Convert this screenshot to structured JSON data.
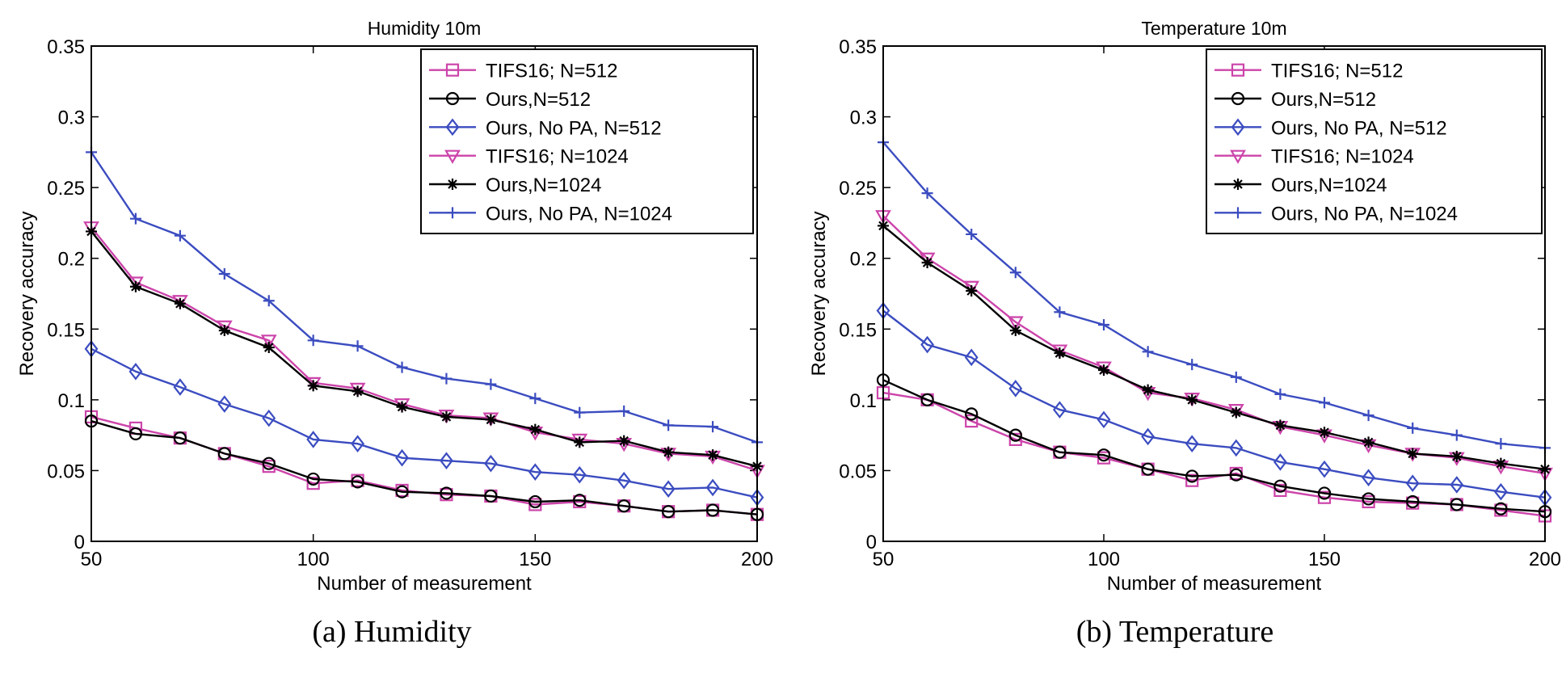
{
  "chart_data": [
    {
      "type": "line",
      "title": "Humidity 10m",
      "xlabel": "Number of measurement",
      "ylabel": "Recovery accuracy",
      "xlim": [
        50,
        200
      ],
      "ylim": [
        0,
        0.35
      ],
      "xticks": [
        "50",
        "100",
        "150",
        "200"
      ],
      "yticks": [
        "0",
        "0.05",
        "0.1",
        "0.15",
        "0.2",
        "0.25",
        "0.3",
        "0.35"
      ],
      "x": [
        50,
        60,
        70,
        80,
        90,
        100,
        110,
        120,
        130,
        140,
        150,
        160,
        170,
        180,
        190,
        200
      ],
      "legend_position": "top-right",
      "caption": "(a) Humidity",
      "series": [
        {
          "name": "TIFS16; N=512",
          "color": "#cc44aa",
          "marker": "square",
          "values": [
            0.088,
            0.08,
            0.073,
            0.062,
            0.053,
            0.041,
            0.043,
            0.036,
            0.033,
            0.032,
            0.026,
            0.028,
            0.025,
            0.021,
            0.022,
            0.019
          ]
        },
        {
          "name": "Ours,N=512",
          "color": "#000000",
          "marker": "circle",
          "values": [
            0.085,
            0.076,
            0.073,
            0.062,
            0.055,
            0.044,
            0.042,
            0.035,
            0.034,
            0.032,
            0.028,
            0.029,
            0.025,
            0.021,
            0.022,
            0.019
          ]
        },
        {
          "name": "Ours, No PA, N=512",
          "color": "#3b4cc0",
          "marker": "diamond",
          "values": [
            0.136,
            0.12,
            0.109,
            0.097,
            0.087,
            0.072,
            0.069,
            0.059,
            0.057,
            0.055,
            0.049,
            0.047,
            0.043,
            0.037,
            0.038,
            0.031
          ]
        },
        {
          "name": "TIFS16; N=1024",
          "color": "#cc44aa",
          "marker": "triangle-down",
          "values": [
            0.222,
            0.183,
            0.17,
            0.152,
            0.142,
            0.112,
            0.108,
            0.097,
            0.089,
            0.087,
            0.077,
            0.072,
            0.069,
            0.062,
            0.06,
            0.05
          ]
        },
        {
          "name": "Ours,N=1024",
          "color": "#000000",
          "marker": "asterisk",
          "values": [
            0.219,
            0.18,
            0.168,
            0.149,
            0.137,
            0.11,
            0.106,
            0.095,
            0.088,
            0.086,
            0.079,
            0.07,
            0.071,
            0.063,
            0.061,
            0.053
          ]
        },
        {
          "name": "Ours, No PA, N=1024",
          "color": "#3b4cc0",
          "marker": "plus",
          "values": [
            0.275,
            0.228,
            0.216,
            0.189,
            0.17,
            0.142,
            0.138,
            0.123,
            0.115,
            0.111,
            0.101,
            0.091,
            0.092,
            0.082,
            0.081,
            0.07
          ]
        }
      ]
    },
    {
      "type": "line",
      "title": "Temperature 10m",
      "xlabel": "Number of measurement",
      "ylabel": "Recovery accuracy",
      "xlim": [
        50,
        200
      ],
      "ylim": [
        0,
        0.35
      ],
      "xticks": [
        "50",
        "100",
        "150",
        "200"
      ],
      "yticks": [
        "0",
        "0.05",
        "0.1",
        "0.15",
        "0.2",
        "0.25",
        "0.3",
        "0.35"
      ],
      "x": [
        50,
        60,
        70,
        80,
        90,
        100,
        110,
        120,
        130,
        140,
        150,
        160,
        170,
        180,
        190,
        200
      ],
      "legend_position": "top-right",
      "caption": "(b) Temperature",
      "series": [
        {
          "name": "TIFS16; N=512",
          "color": "#cc44aa",
          "marker": "square",
          "values": [
            0.105,
            0.1,
            0.085,
            0.072,
            0.063,
            0.059,
            0.051,
            0.043,
            0.048,
            0.036,
            0.031,
            0.028,
            0.027,
            0.026,
            0.022,
            0.018
          ]
        },
        {
          "name": "Ours,N=512",
          "color": "#000000",
          "marker": "circle",
          "values": [
            0.114,
            0.1,
            0.09,
            0.075,
            0.063,
            0.061,
            0.051,
            0.046,
            0.047,
            0.039,
            0.034,
            0.03,
            0.028,
            0.026,
            0.023,
            0.021
          ]
        },
        {
          "name": "Ours, No PA, N=512",
          "color": "#3b4cc0",
          "marker": "diamond",
          "values": [
            0.163,
            0.139,
            0.13,
            0.108,
            0.093,
            0.086,
            0.074,
            0.069,
            0.066,
            0.056,
            0.051,
            0.045,
            0.041,
            0.04,
            0.035,
            0.031
          ]
        },
        {
          "name": "TIFS16; N=1024",
          "color": "#cc44aa",
          "marker": "triangle-down",
          "values": [
            0.23,
            0.2,
            0.18,
            0.155,
            0.135,
            0.123,
            0.105,
            0.101,
            0.093,
            0.081,
            0.075,
            0.068,
            0.062,
            0.059,
            0.053,
            0.048
          ]
        },
        {
          "name": "Ours,N=1024",
          "color": "#000000",
          "marker": "asterisk",
          "values": [
            0.223,
            0.197,
            0.177,
            0.149,
            0.133,
            0.121,
            0.107,
            0.1,
            0.091,
            0.082,
            0.077,
            0.07,
            0.062,
            0.06,
            0.055,
            0.051
          ]
        },
        {
          "name": "Ours, No PA, N=1024",
          "color": "#3b4cc0",
          "marker": "plus",
          "values": [
            0.282,
            0.246,
            0.217,
            0.19,
            0.162,
            0.153,
            0.134,
            0.125,
            0.116,
            0.104,
            0.098,
            0.089,
            0.08,
            0.075,
            0.069,
            0.066
          ]
        }
      ]
    }
  ]
}
